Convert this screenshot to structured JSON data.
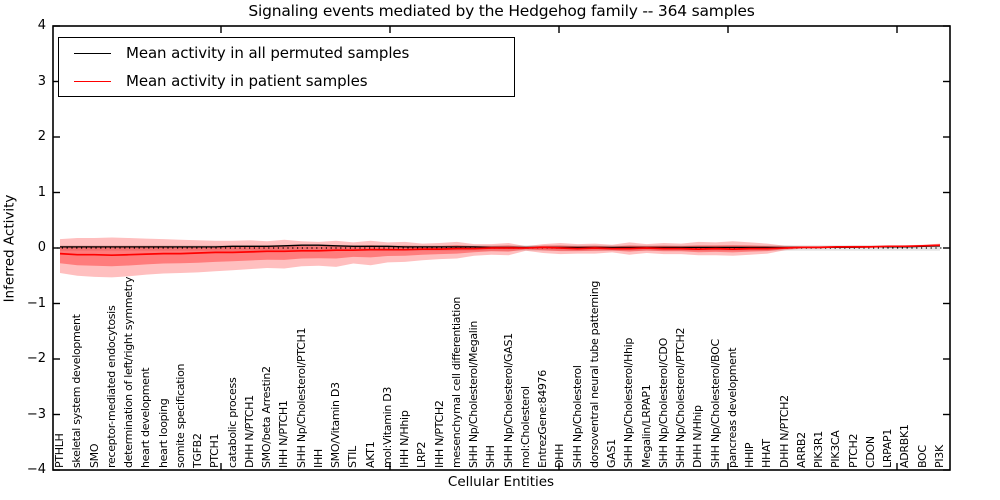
{
  "chart_data": {
    "type": "line",
    "title": "Signaling events mediated by the Hedgehog family -- 364 samples",
    "xlabel": "Cellular Entities",
    "ylabel": "Inferred Activity",
    "ylim": [
      -4,
      4
    ],
    "ytick_values": [
      4,
      3,
      2,
      1,
      0,
      -1,
      -2,
      -3,
      -4
    ],
    "ytick_labels": [
      "4",
      "3",
      "2",
      "1",
      "0",
      "−1",
      "−2",
      "−3",
      "−4"
    ],
    "grid": false,
    "legend_position": "upper left",
    "legend": [
      {
        "label": "Mean activity in all permuted samples",
        "color": "#000000"
      },
      {
        "label": "Mean activity in patient samples",
        "color": "#ff0000"
      }
    ],
    "categories": [
      "PTHLH",
      "skeletal system development",
      "SMO",
      "receptor-mediated endocytosis",
      "determination of left/right symmetry",
      "heart development",
      "heart looping",
      "somite specification",
      "TGFB2",
      "PTCH1",
      "catabolic process",
      "DHH N/PTCH1",
      "SMO/beta Arrestin2",
      "IHH N/PTCH1",
      "SHH Np/Cholesterol/PTCH1",
      "IHH",
      "SMO/Vitamin D3",
      "STIL",
      "AKT1",
      "mol:Vitamin D3",
      "IHH N/Hhip",
      "LRP2",
      "IHH N/PTCH2",
      "mesenchymal cell differentiation",
      "SHH Np/Cholesterol/Megalin",
      "SHH",
      "SHH Np/Cholesterol/GAS1",
      "mol:Cholesterol",
      "EntrezGene:84976",
      "DHH",
      "SHH Np/Cholesterol",
      "dorsoventral neural tube patterning",
      "GAS1",
      "SHH Np/Cholesterol/Hhip",
      "Megalin/LRPAP1",
      "SHH Np/Cholesterol/CDO",
      "SHH Np/Cholesterol/PTCH2",
      "DHH N/Hhip",
      "SHH Np/Cholesterol/BOC",
      "pancreas development",
      "HHIP",
      "HHAT",
      "DHH N/PTCH2",
      "ARRB2",
      "PIK3R1",
      "PIK3CA",
      "PTCH2",
      "CDON",
      "LRPAP1",
      "ADRBK1",
      "BOC",
      "PI3K"
    ],
    "series": [
      {
        "name": "Mean activity in all permuted samples",
        "color": "#000000",
        "values": [
          0.02,
          0.02,
          0.02,
          0.02,
          0.02,
          0.02,
          0.02,
          0.02,
          0.02,
          0.02,
          0.03,
          0.03,
          0.03,
          0.04,
          0.05,
          0.05,
          0.04,
          0.03,
          0.03,
          0.03,
          0.02,
          0.02,
          0.02,
          0.02,
          0.02,
          0.01,
          0.01,
          0.01,
          0.01,
          0.01,
          0.01,
          0.01,
          0.01,
          0.01,
          0.01,
          0.01,
          0.01,
          0.01,
          0.01,
          0.01,
          0.01,
          0.01,
          0.01,
          0.01,
          0.01,
          0.01,
          0.01,
          0.02,
          0.02,
          0.02,
          0.03,
          0.04
        ]
      },
      {
        "name": "Mean activity in patient samples",
        "color": "#ff0000",
        "values": [
          -0.1,
          -0.12,
          -0.12,
          -0.13,
          -0.12,
          -0.11,
          -0.1,
          -0.1,
          -0.09,
          -0.08,
          -0.08,
          -0.07,
          -0.06,
          -0.06,
          -0.05,
          -0.05,
          -0.04,
          -0.04,
          -0.03,
          -0.03,
          -0.03,
          -0.02,
          -0.02,
          -0.01,
          -0.01,
          0.0,
          0.0,
          0.0,
          0.01,
          0.0,
          -0.01,
          0.0,
          -0.01,
          -0.01,
          0.0,
          -0.01,
          -0.01,
          -0.02,
          -0.01,
          -0.02,
          -0.01,
          -0.01,
          0.0,
          0.01,
          0.01,
          0.02,
          0.02,
          0.02,
          0.03,
          0.03,
          0.04,
          0.05
        ]
      }
    ],
    "patient_band": {
      "color": "#ff0000",
      "outer_opacity": 0.25,
      "inner_opacity": 0.35,
      "inner_scale": 0.5,
      "upper": [
        0.16,
        0.18,
        0.18,
        0.19,
        0.18,
        0.17,
        0.16,
        0.15,
        0.14,
        0.13,
        0.13,
        0.14,
        0.12,
        0.15,
        0.12,
        0.11,
        0.13,
        0.1,
        0.13,
        0.1,
        0.11,
        0.08,
        0.09,
        0.11,
        0.07,
        0.07,
        0.09,
        0.03,
        0.07,
        0.09,
        0.07,
        0.08,
        0.06,
        0.1,
        0.07,
        0.09,
        0.08,
        0.11,
        0.1,
        0.12,
        0.1,
        0.08,
        0.04,
        0.03,
        0.03,
        0.03,
        0.04,
        0.04,
        0.04,
        0.05,
        0.06,
        0.08
      ],
      "lower": [
        -0.45,
        -0.5,
        -0.52,
        -0.53,
        -0.51,
        -0.48,
        -0.46,
        -0.45,
        -0.44,
        -0.42,
        -0.4,
        -0.38,
        -0.36,
        -0.37,
        -0.33,
        -0.32,
        -0.34,
        -0.28,
        -0.31,
        -0.26,
        -0.25,
        -0.22,
        -0.2,
        -0.19,
        -0.14,
        -0.12,
        -0.13,
        -0.05,
        -0.09,
        -0.11,
        -0.1,
        -0.1,
        -0.08,
        -0.12,
        -0.09,
        -0.11,
        -0.11,
        -0.13,
        -0.13,
        -0.14,
        -0.12,
        -0.1,
        -0.04,
        -0.01,
        -0.01,
        0.0,
        0.0,
        0.01,
        0.01,
        0.02,
        0.02,
        0.02
      ]
    },
    "permuted_band": {
      "halfwidth": 0.05,
      "color": "#aaaaaa",
      "opacity": 0.3
    },
    "zero_line": {
      "style": "dotted",
      "color": "#000000",
      "value": 0
    }
  }
}
